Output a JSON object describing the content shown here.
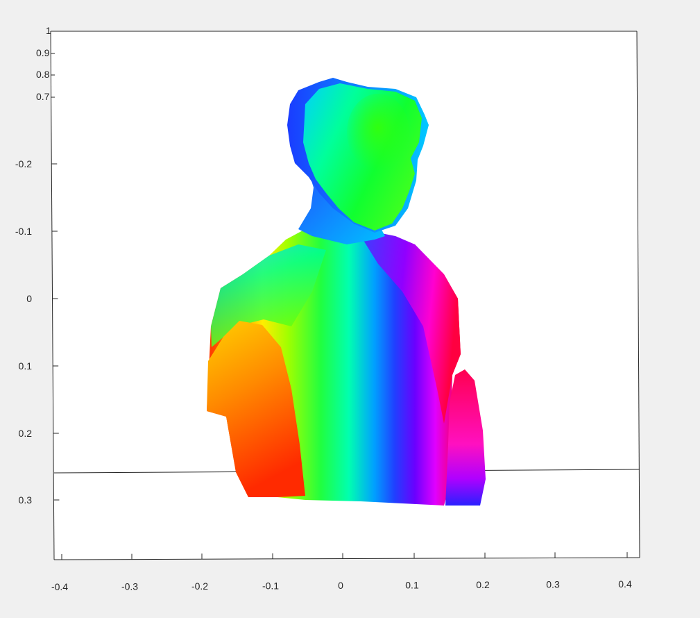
{
  "figure": {
    "background": "#f0f0f0",
    "axes_color": "#262626",
    "plot_background": "#ffffff"
  },
  "chart_data": {
    "type": "scatter",
    "view": "3d",
    "colormap": "hsv",
    "xlim": [
      -0.4,
      0.4
    ],
    "ylim": [
      -0.35,
      0.35
    ],
    "zlim": [
      0.7,
      1.0
    ],
    "x_ticks": [
      -0.4,
      -0.3,
      -0.2,
      -0.1,
      0,
      0.1,
      0.2,
      0.3,
      0.4
    ],
    "x_tick_labels": [
      "-0.4",
      "-0.3",
      "-0.2",
      "-0.1",
      "0",
      "0.1",
      "0.2",
      "0.3",
      "0.4"
    ],
    "y_ticks": [
      -0.2,
      -0.1,
      0,
      0.1,
      0.2,
      0.3
    ],
    "y_tick_labels": [
      "-0.2",
      "-0.1",
      "0",
      "0.1",
      "0.2",
      "0.3"
    ],
    "z_ticks": [
      1,
      0.9,
      0.8,
      0.7
    ],
    "z_tick_labels": [
      "1",
      "0.9",
      "0.8",
      "0.7"
    ],
    "grid": false,
    "title": "",
    "xlabel": "",
    "ylabel": "",
    "zlabel": "",
    "series": [
      {
        "description": "colored 3D point cloud of a person's head and upper torso, color mapped from depth",
        "regions": [
          {
            "part": "head",
            "dominant_colors": [
              "#00e5ff",
              "#00ff40",
              "#2060ff"
            ]
          },
          {
            "part": "neck",
            "dominant_colors": [
              "#00b0ff",
              "#0040ff"
            ]
          },
          {
            "part": "left shoulder and arm",
            "dominant_colors": [
              "#00ff80",
              "#ffff00",
              "#ff8000",
              "#ff2000"
            ]
          },
          {
            "part": "chest",
            "dominant_colors": [
              "#40ff00",
              "#00ffb0",
              "#00a0ff",
              "#2040ff"
            ]
          },
          {
            "part": "right shoulder",
            "dominant_colors": [
              "#6000ff",
              "#c000ff",
              "#ff00c0",
              "#ff0040"
            ]
          },
          {
            "part": "right forearm",
            "dominant_colors": [
              "#ff0040",
              "#ff00c0",
              "#3000ff"
            ]
          }
        ]
      }
    ]
  }
}
